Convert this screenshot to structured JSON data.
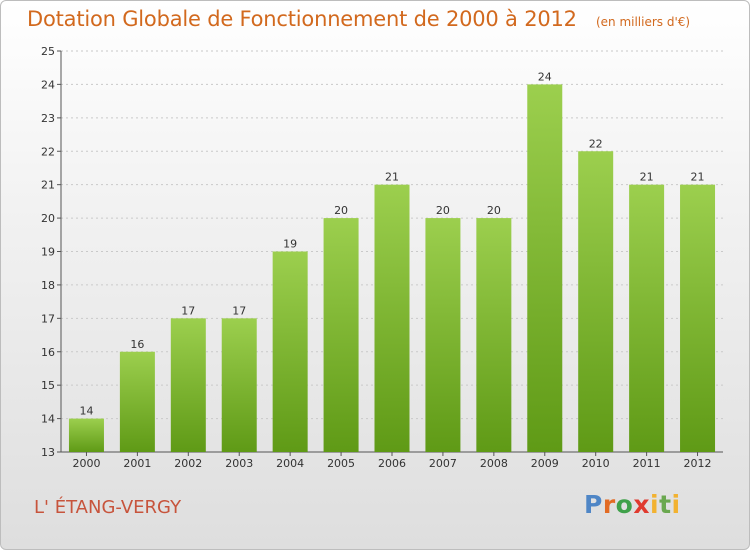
{
  "title": "Dotation Globale de Fonctionnement de 2000 à 2012",
  "unit_note": "(en milliers d'€)",
  "commune": "L' ÉTANG-VERGY",
  "logo": {
    "p": "P",
    "r": "r",
    "o": "o",
    "x": "x",
    "i": "i",
    "t": "t",
    "i2": "i"
  },
  "colors": {
    "bar_top": "#9ccf4e",
    "bar_bottom": "#5f9a16",
    "title": "#d2691e",
    "commune": "#c7543c"
  },
  "chart_data": {
    "type": "bar",
    "title": "Dotation Globale de Fonctionnement de 2000 à 2012",
    "xlabel": "",
    "ylabel": "(en milliers d'€)",
    "ylim": [
      13,
      25
    ],
    "yticks": [
      13,
      14,
      15,
      16,
      17,
      18,
      19,
      20,
      21,
      22,
      23,
      24,
      25
    ],
    "categories": [
      "2000",
      "2001",
      "2002",
      "2003",
      "2004",
      "2005",
      "2006",
      "2007",
      "2008",
      "2009",
      "2010",
      "2011",
      "2012"
    ],
    "values": [
      14,
      16,
      17,
      17,
      19,
      20,
      21,
      20,
      20,
      24,
      22,
      21,
      21
    ],
    "grid": true
  }
}
